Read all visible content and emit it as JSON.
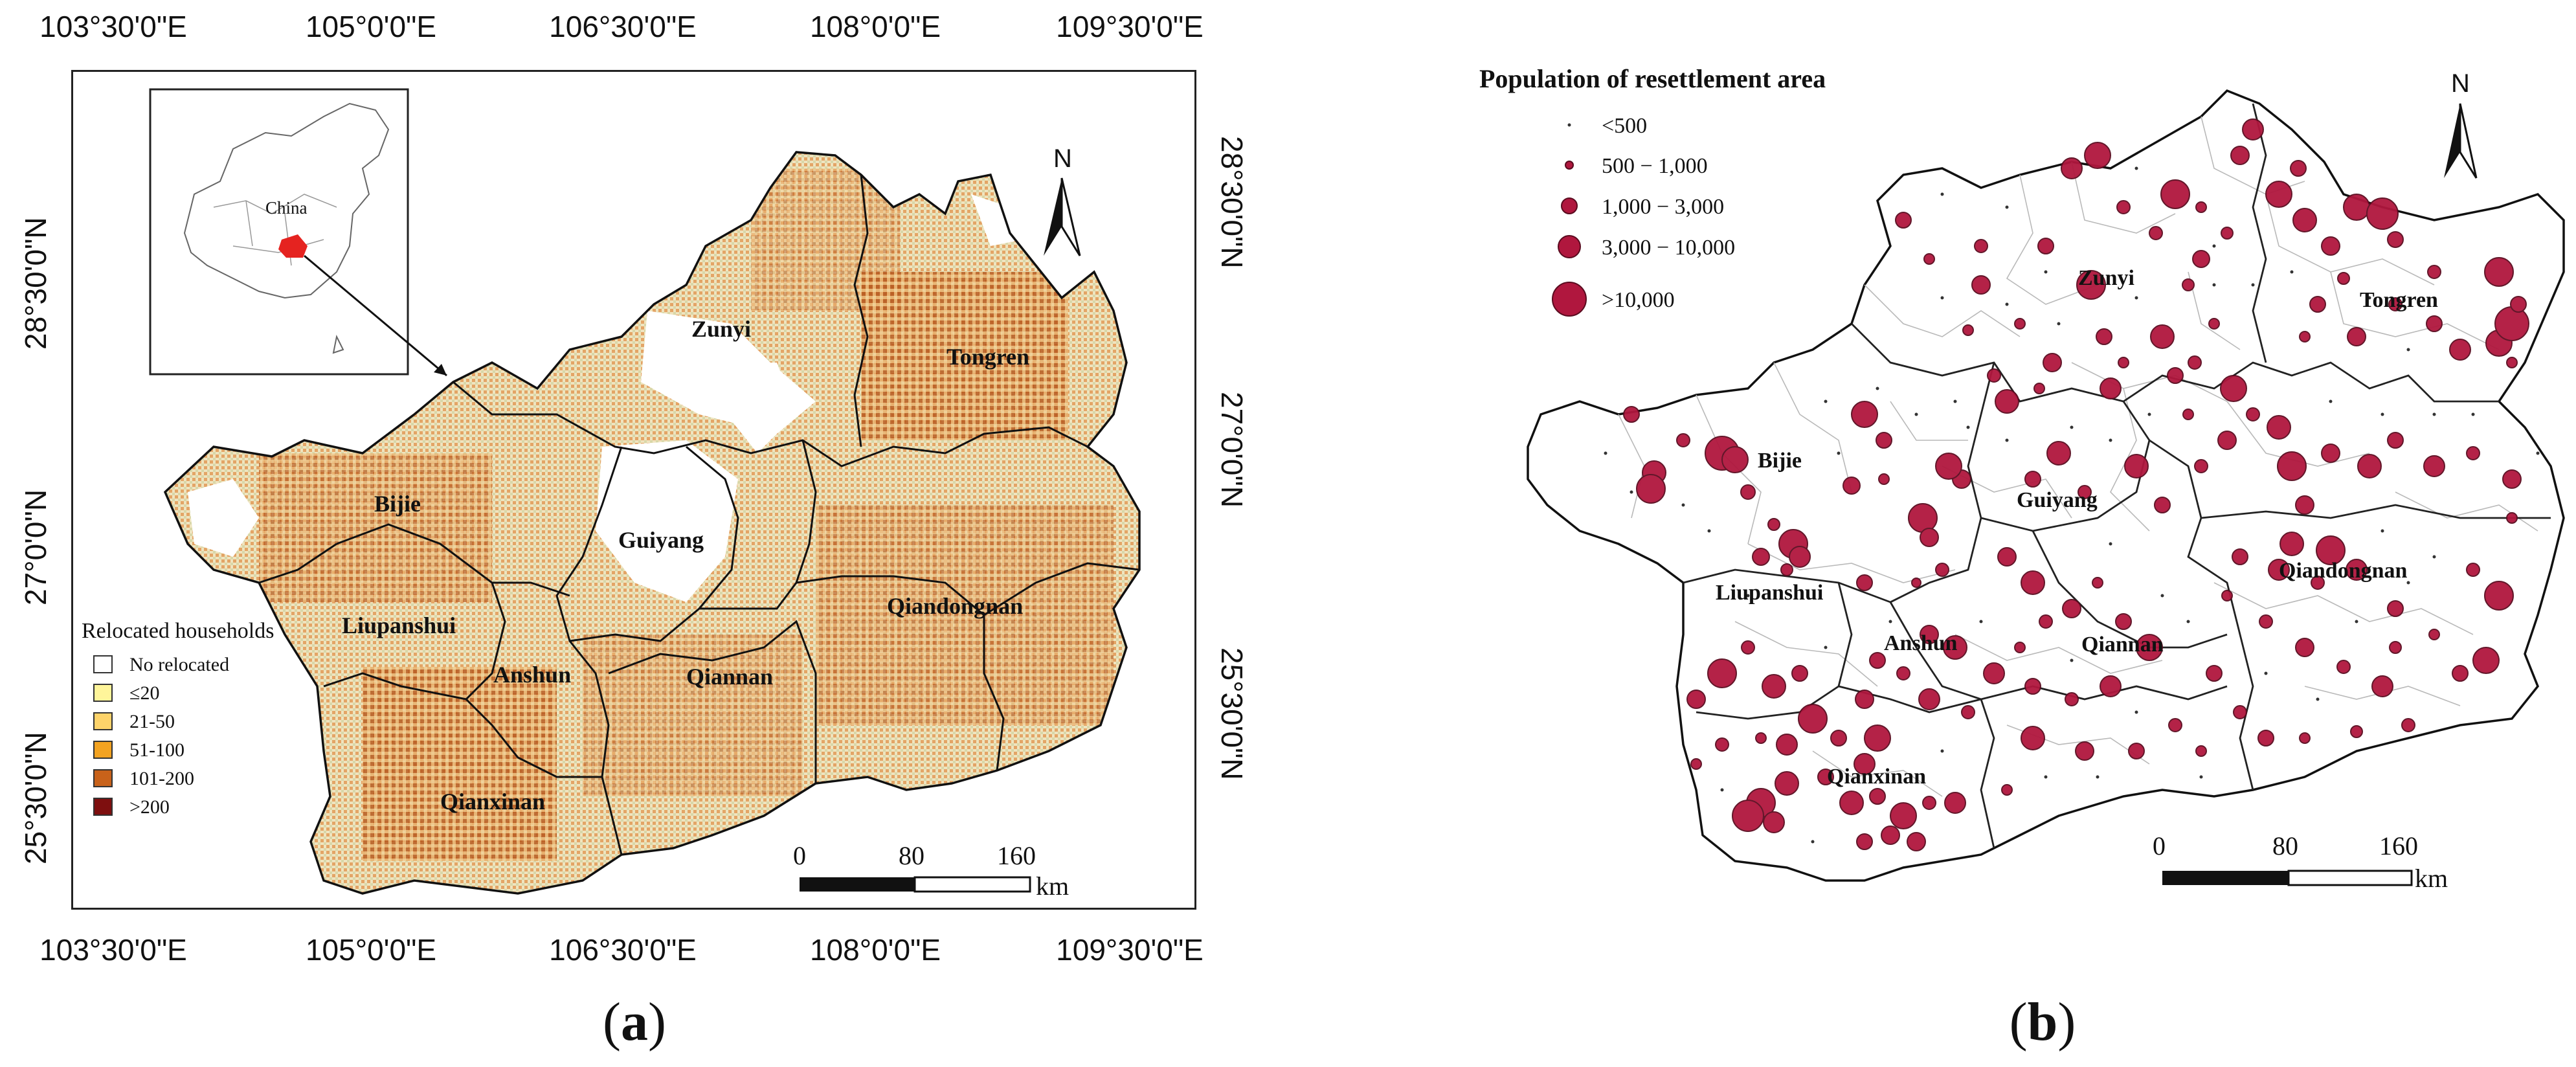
{
  "panel_a": {
    "label_letter": "a",
    "top_ticks": [
      "103°30'0\"E",
      "105°0'0\"E",
      "106°30'0\"E",
      "108°0'0\"E",
      "109°30'0\"E"
    ],
    "bottom_ticks": [
      "103°30'0\"E",
      "105°0'0\"E",
      "106°30'0\"E",
      "108°0'0\"E",
      "109°30'0\"E"
    ],
    "left_ticks": [
      "28°30'0\"N",
      "27°0'0\"N",
      "25°30'0\"N"
    ],
    "right_ticks": [
      "28°30'0\"N",
      "27°0'0\"N",
      "25°30'0\"N"
    ],
    "inset_label": "China",
    "north": "N",
    "regions": [
      "Zunyi",
      "Tongren",
      "Bijie",
      "Guiyang",
      "Liupanshui",
      "Anshun",
      "Qiannan",
      "Qiandongnan",
      "Qianxinan"
    ],
    "legend": {
      "title": "Relocated households",
      "items": [
        {
          "label": "No relocated",
          "color": "#ffffff"
        },
        {
          "label": "≤20",
          "color": "#fff59a"
        },
        {
          "label": "21-50",
          "color": "#fdd36a"
        },
        {
          "label": "51-100",
          "color": "#f3a321"
        },
        {
          "label": "101-200",
          "color": "#c8621a"
        },
        {
          "label": ">200",
          "color": "#7e0f0f"
        }
      ]
    },
    "scale": {
      "labels": [
        "0",
        "80",
        "160"
      ],
      "unit": "km"
    }
  },
  "panel_b": {
    "label_letter": "b",
    "north": "N",
    "regions": [
      "Zunyi",
      "Tongren",
      "Bijie",
      "Guiyang",
      "Liupanshui",
      "Anshun",
      "Qiannan",
      "Qiandongnan",
      "Qianxinan"
    ],
    "legend": {
      "title": "Population of resettlement area",
      "items": [
        {
          "label": "<500"
        },
        {
          "label": "500 − 1,000"
        },
        {
          "label": "1,000 − 3,000"
        },
        {
          "label": "3,000 − 10,000"
        },
        {
          "label": ">10,000"
        }
      ]
    },
    "bubble_color": "#b0173e",
    "scale": {
      "labels": [
        "0",
        "80",
        "160"
      ],
      "unit": "km"
    }
  }
}
